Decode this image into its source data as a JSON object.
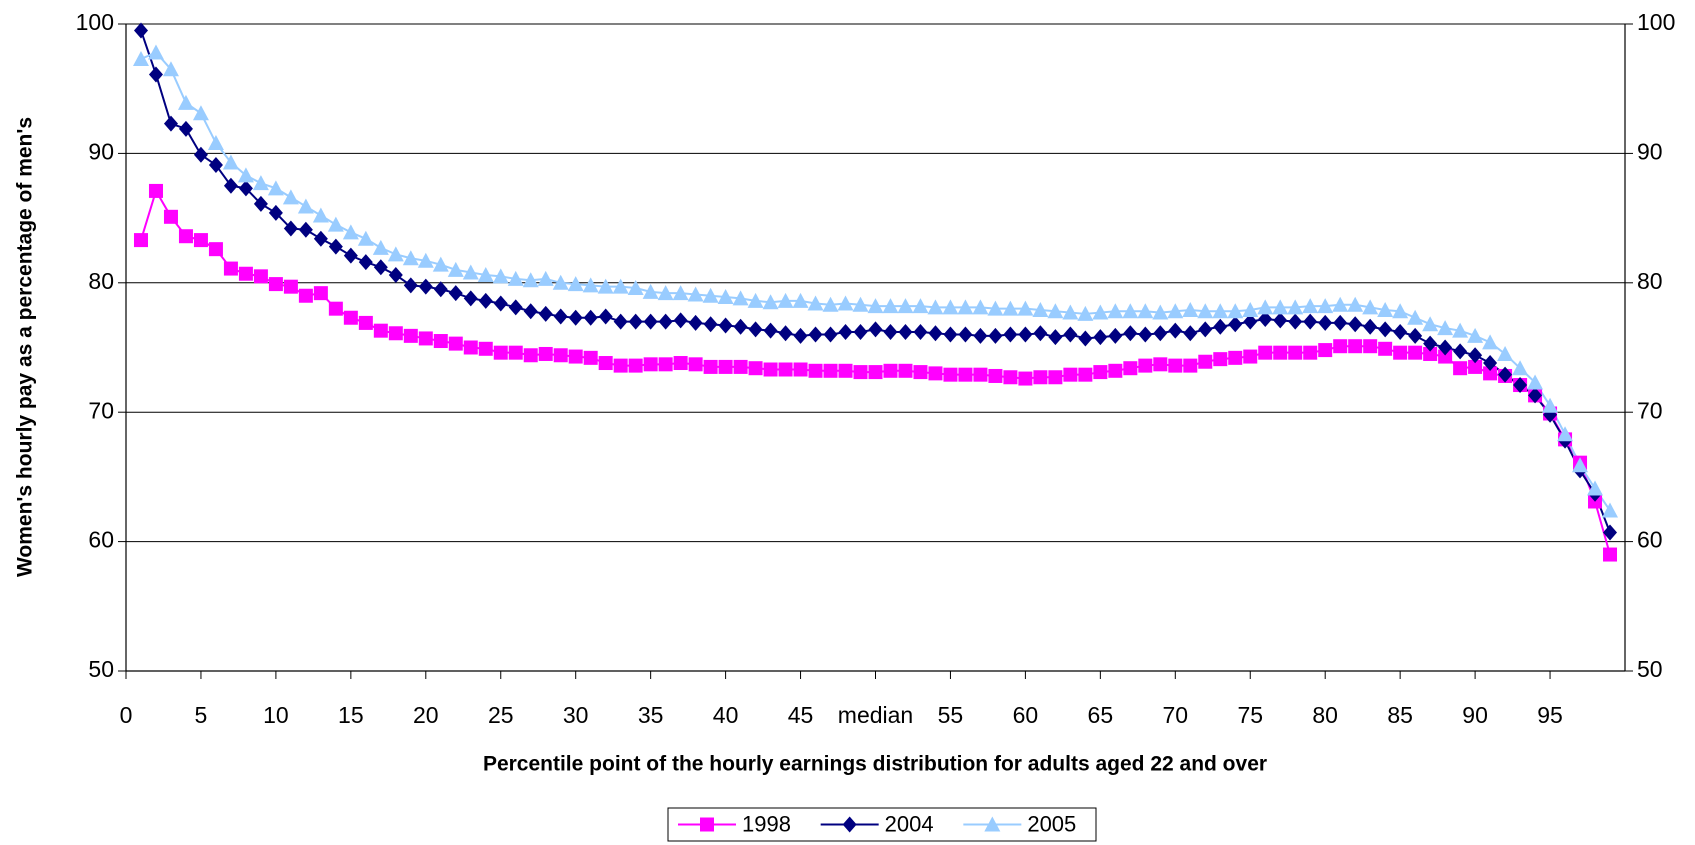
{
  "chart_data": {
    "type": "line",
    "x_label": "Percentile point of the hourly earnings distribution for adults aged 22 and over",
    "y_label": "Women's hourly pay as a percentage of men's",
    "x": [
      1,
      2,
      3,
      4,
      5,
      6,
      7,
      8,
      9,
      10,
      11,
      12,
      13,
      14,
      15,
      16,
      17,
      18,
      19,
      20,
      21,
      22,
      23,
      24,
      25,
      26,
      27,
      28,
      29,
      30,
      31,
      32,
      33,
      34,
      35,
      36,
      37,
      38,
      39,
      40,
      41,
      42,
      43,
      44,
      45,
      46,
      47,
      48,
      49,
      50,
      51,
      52,
      53,
      54,
      55,
      56,
      57,
      58,
      59,
      60,
      61,
      62,
      63,
      64,
      65,
      66,
      67,
      68,
      69,
      70,
      71,
      72,
      73,
      74,
      75,
      76,
      77,
      78,
      79,
      80,
      81,
      82,
      83,
      84,
      85,
      86,
      87,
      88,
      89,
      90,
      91,
      92,
      93,
      94,
      95,
      96,
      97,
      98,
      99
    ],
    "series": [
      {
        "name": "1998",
        "color": "#ff00ff",
        "marker": "square",
        "values": [
          83.3,
          87.1,
          85.1,
          83.6,
          83.3,
          82.6,
          81.1,
          80.7,
          80.5,
          79.9,
          79.7,
          79.0,
          79.2,
          78.0,
          77.3,
          76.9,
          76.3,
          76.1,
          75.9,
          75.7,
          75.5,
          75.3,
          75.0,
          74.9,
          74.6,
          74.6,
          74.4,
          74.5,
          74.4,
          74.3,
          74.2,
          73.8,
          73.6,
          73.6,
          73.7,
          73.7,
          73.8,
          73.7,
          73.5,
          73.5,
          73.5,
          73.4,
          73.3,
          73.3,
          73.3,
          73.2,
          73.2,
          73.2,
          73.1,
          73.1,
          73.2,
          73.2,
          73.1,
          73.0,
          72.9,
          72.9,
          72.9,
          72.8,
          72.7,
          72.6,
          72.7,
          72.7,
          72.9,
          72.9,
          73.1,
          73.2,
          73.4,
          73.6,
          73.7,
          73.6,
          73.6,
          73.9,
          74.1,
          74.2,
          74.3,
          74.6,
          74.6,
          74.6,
          74.6,
          74.8,
          75.1,
          75.1,
          75.1,
          74.9,
          74.6,
          74.6,
          74.5,
          74.3,
          73.4,
          73.5,
          73.0,
          72.8,
          72.1,
          71.3,
          69.9,
          67.9,
          66.1,
          63.1,
          59.0
        ]
      },
      {
        "name": "2004",
        "color": "#000080",
        "marker": "diamond",
        "values": [
          99.5,
          96.1,
          92.3,
          91.9,
          89.9,
          89.1,
          87.5,
          87.3,
          86.1,
          85.4,
          84.2,
          84.1,
          83.4,
          82.8,
          82.1,
          81.6,
          81.2,
          80.6,
          79.8,
          79.7,
          79.5,
          79.2,
          78.8,
          78.6,
          78.4,
          78.1,
          77.8,
          77.6,
          77.4,
          77.3,
          77.3,
          77.4,
          77.0,
          77.0,
          77.0,
          77.0,
          77.1,
          76.9,
          76.8,
          76.7,
          76.6,
          76.4,
          76.3,
          76.1,
          75.9,
          76.0,
          76.0,
          76.2,
          76.2,
          76.4,
          76.2,
          76.2,
          76.2,
          76.1,
          76.0,
          76.0,
          75.9,
          75.9,
          76.0,
          76.0,
          76.1,
          75.8,
          76.0,
          75.7,
          75.8,
          75.9,
          76.1,
          76.0,
          76.1,
          76.3,
          76.1,
          76.4,
          76.6,
          76.8,
          77.0,
          77.2,
          77.1,
          77.0,
          77.0,
          76.9,
          76.9,
          76.8,
          76.6,
          76.4,
          76.2,
          75.9,
          75.3,
          75.0,
          74.7,
          74.4,
          73.8,
          72.9,
          72.1,
          71.3,
          69.8,
          67.8,
          65.5,
          63.7,
          60.7
        ]
      },
      {
        "name": "2005",
        "color": "#99ccff",
        "marker": "triangle",
        "values": [
          97.3,
          97.8,
          96.5,
          93.9,
          93.1,
          90.8,
          89.3,
          88.3,
          87.7,
          87.3,
          86.6,
          85.9,
          85.2,
          84.5,
          83.9,
          83.4,
          82.7,
          82.2,
          81.9,
          81.7,
          81.4,
          81.0,
          80.8,
          80.6,
          80.5,
          80.3,
          80.2,
          80.3,
          80.0,
          79.9,
          79.8,
          79.7,
          79.7,
          79.6,
          79.3,
          79.2,
          79.2,
          79.1,
          79.0,
          78.9,
          78.8,
          78.6,
          78.5,
          78.6,
          78.6,
          78.4,
          78.3,
          78.4,
          78.3,
          78.2,
          78.2,
          78.2,
          78.2,
          78.1,
          78.1,
          78.1,
          78.1,
          78.0,
          78.0,
          78.0,
          77.9,
          77.8,
          77.7,
          77.6,
          77.7,
          77.8,
          77.8,
          77.8,
          77.7,
          77.8,
          77.9,
          77.8,
          77.8,
          77.8,
          77.9,
          78.1,
          78.1,
          78.1,
          78.2,
          78.2,
          78.3,
          78.3,
          78.1,
          77.9,
          77.8,
          77.3,
          76.8,
          76.5,
          76.3,
          75.9,
          75.4,
          74.5,
          73.4,
          72.3,
          70.5,
          68.3,
          65.9,
          64.1,
          62.4
        ]
      }
    ],
    "xlim": [
      0,
      100
    ],
    "xticks": [
      0,
      5,
      10,
      15,
      20,
      25,
      30,
      35,
      40,
      45,
      {
        "value": 50,
        "label": "median"
      },
      55,
      60,
      65,
      70,
      75,
      80,
      85,
      90,
      95
    ],
    "ylim": [
      50,
      100
    ],
    "yticks": [
      50,
      60,
      70,
      80,
      90,
      100
    ],
    "y2lim": [
      50,
      100
    ],
    "y2ticks": [
      50,
      60,
      70,
      80,
      90,
      100
    ],
    "grid": true,
    "legend": "bottom"
  }
}
